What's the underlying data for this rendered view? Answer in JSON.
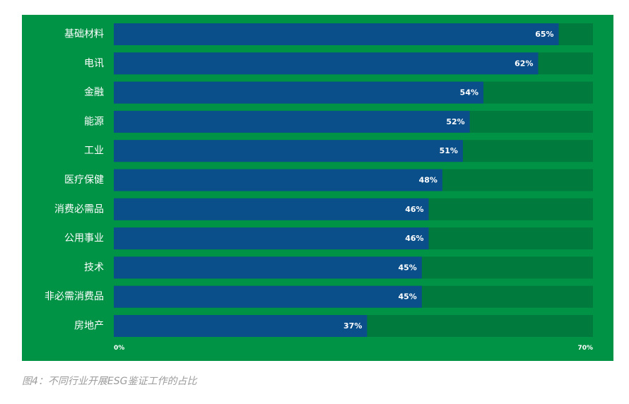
{
  "chart_data": {
    "type": "bar",
    "orientation": "horizontal",
    "categories": [
      "基础材料",
      "电讯",
      "金融",
      "能源",
      "工业",
      "医疗保健",
      "消费必需品",
      "公用事业",
      "技术",
      "非必需消费品",
      "房地产"
    ],
    "values": [
      65,
      62,
      54,
      52,
      51,
      48,
      46,
      46,
      45,
      45,
      37
    ],
    "value_labels": [
      "65%",
      "62%",
      "54%",
      "52%",
      "51%",
      "48%",
      "46%",
      "46%",
      "45%",
      "45%",
      "37%"
    ],
    "xlim": [
      0,
      70
    ],
    "x_ticks": [
      "0%",
      "70%"
    ],
    "grid": false,
    "title": "",
    "xlabel": "",
    "ylabel": ""
  },
  "caption": "图4：不同行业开展ESG鉴证工作的占比",
  "colors": {
    "panel_background": "#009245",
    "bar_track": "#007a3d",
    "bar_fill": "#0b4f8a",
    "text": "#ffffff",
    "caption": "#9b9b9b"
  }
}
